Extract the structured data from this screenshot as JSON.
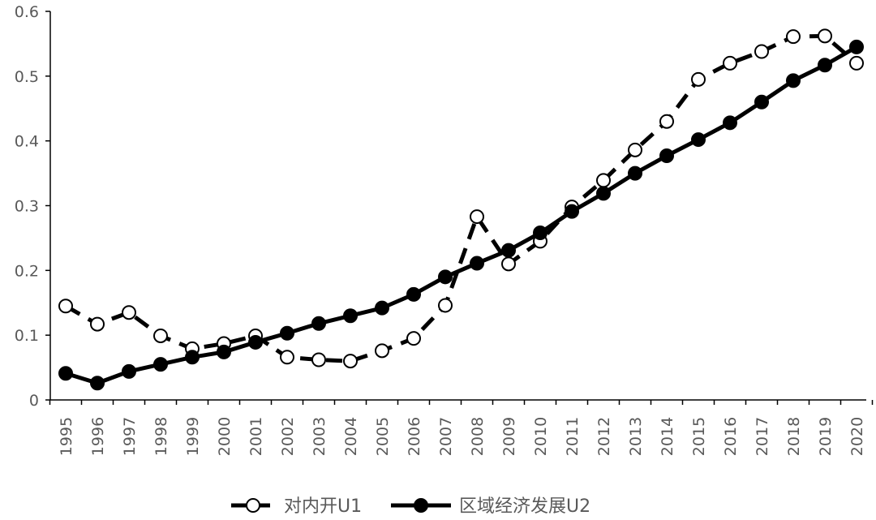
{
  "chart_data": {
    "type": "line",
    "title": "",
    "xlabel": "",
    "ylabel": "",
    "categories": [
      "1995",
      "1996",
      "1997",
      "1998",
      "1999",
      "2000",
      "2001",
      "2002",
      "2003",
      "2004",
      "2005",
      "2006",
      "2007",
      "2008",
      "2009",
      "2010",
      "2011",
      "2012",
      "2013",
      "2014",
      "2015",
      "2016",
      "2017",
      "2018",
      "2019",
      "2020"
    ],
    "ylim": [
      0,
      0.6
    ],
    "yticks": [
      0,
      0.1,
      0.2,
      0.3,
      0.4,
      0.5,
      0.6
    ],
    "ytick_labels": [
      "0",
      "0.1",
      "0.2",
      "0.3",
      "0.4",
      "0.5",
      "0.6"
    ],
    "grid": false,
    "legend_position": "bottom",
    "series": [
      {
        "name": "对内开U1",
        "style": "dashed",
        "marker": "open-circle",
        "color": "#000000",
        "values": [
          0.145,
          0.117,
          0.135,
          0.099,
          0.079,
          0.087,
          0.099,
          0.066,
          0.062,
          0.06,
          0.076,
          0.095,
          0.146,
          0.283,
          0.21,
          0.245,
          0.298,
          0.339,
          0.386,
          0.43,
          0.495,
          0.52,
          0.538,
          0.561,
          0.562,
          0.52
        ]
      },
      {
        "name": "区域经济发展U2",
        "style": "solid",
        "marker": "filled-circle",
        "color": "#000000",
        "values": [
          0.041,
          0.026,
          0.044,
          0.055,
          0.066,
          0.074,
          0.089,
          0.103,
          0.118,
          0.13,
          0.142,
          0.163,
          0.19,
          0.211,
          0.231,
          0.258,
          0.291,
          0.319,
          0.35,
          0.377,
          0.402,
          0.428,
          0.46,
          0.493,
          0.517,
          0.545
        ]
      }
    ]
  }
}
